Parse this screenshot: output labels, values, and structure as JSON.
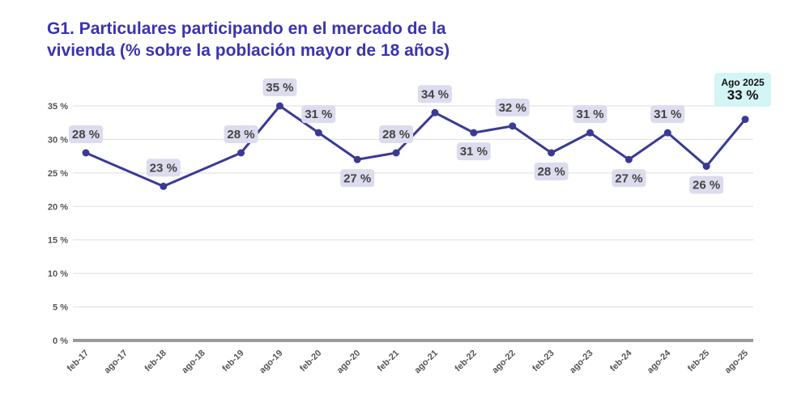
{
  "chart_data": {
    "type": "line",
    "title": "G1. Particulares participando en el mercado de la vivienda (% sobre la población mayor de 18 años)",
    "categories": [
      "feb-17",
      "ago-17",
      "feb-18",
      "ago-18",
      "feb-19",
      "ago-19",
      "feb-20",
      "ago-20",
      "feb-21",
      "ago-21",
      "feb-22",
      "ago-22",
      "feb-23",
      "ago-23",
      "feb-24",
      "ago-24",
      "feb-25",
      "ago-25"
    ],
    "values": [
      28,
      null,
      23,
      null,
      28,
      35,
      31,
      27,
      28,
      34,
      31,
      32,
      28,
      31,
      27,
      31,
      26,
      33
    ],
    "data_labels": [
      "28 %",
      null,
      "23 %",
      null,
      "28 %",
      "35 %",
      "31 %",
      "27 %",
      "28 %",
      "34 %",
      "31 %",
      "32 %",
      "28 %",
      "31 %",
      "27 %",
      "31 %",
      "26 %",
      null
    ],
    "label_position": [
      "above",
      null,
      "above",
      null,
      "above",
      "above",
      "above",
      "below",
      "above",
      "above",
      "below",
      "above",
      "below",
      "above",
      "below",
      "above",
      "below",
      null
    ],
    "y_ticks": [
      "0 %",
      "5 %",
      "10 %",
      "15 %",
      "20 %",
      "25 %",
      "30 %",
      "35 %"
    ],
    "ylim": [
      0,
      35
    ],
    "grid": true,
    "line_color": "#3a3a96",
    "label_bg": "#dcdcee",
    "callout": {
      "label": "Ago 2025",
      "value": "33 %",
      "color": "#d4f5f5"
    }
  }
}
